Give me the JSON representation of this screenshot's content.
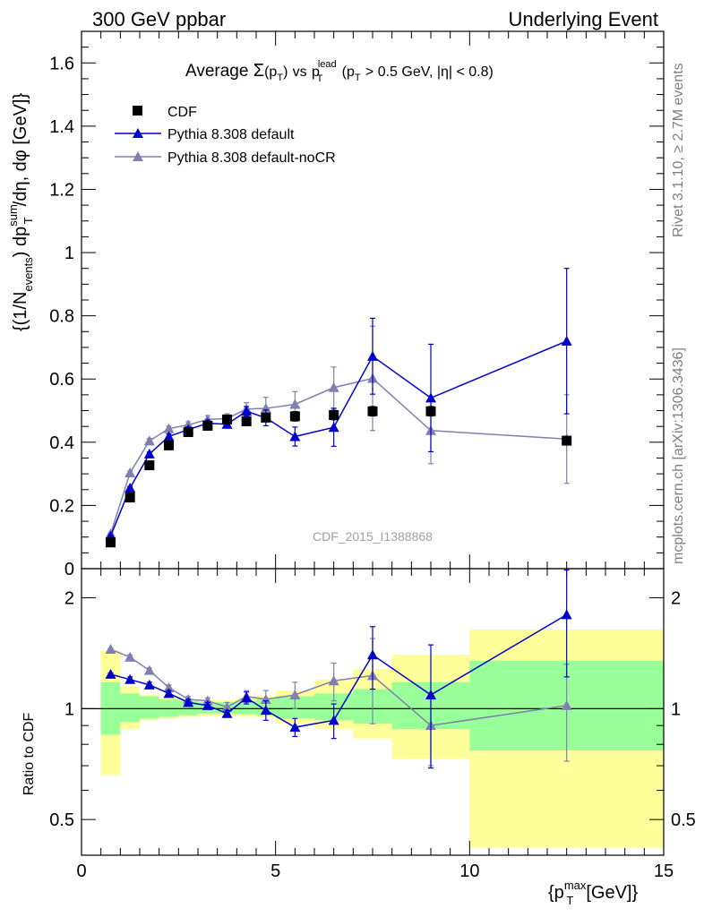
{
  "header": {
    "left": "300 GeV ppbar",
    "right": "Underlying Event"
  },
  "main_title": {
    "prefix": "Average",
    "sigma": "Σ",
    "pt_term": "(p",
    "pt_sub": "T",
    "close": ")",
    "vs": "vs",
    "p": "p",
    "lead_sup": "lead",
    "lead_sub": "T",
    "cut_open": "(p",
    "cut_sub": "T",
    "cut_rest": "> 0.5 GeV, |η| < 0.8)"
  },
  "side_labels": {
    "rivet": "Rivet 3.1.10, ≥ 2.7M events",
    "mcplots": "mcplots.cern.ch [arXiv:1306.3436]"
  },
  "watermark": "CDF_2015_I1388868",
  "colors": {
    "data": "#000000",
    "pythia_default": "#0000cc",
    "pythia_nocr": "#7f7fb2",
    "band_inner": "#99ff99",
    "band_outer": "#ffff99"
  },
  "chart_data": [
    {
      "type": "scatter",
      "panel": "main",
      "ylabel": "{(1/N_events) dp_T^sum/dη, dφ [GeV]}",
      "ylabel_parts": {
        "a": "{(1/N",
        "a_sub": "events",
        "b": ") dp",
        "b_sup": "sum",
        "b_sub": "T",
        "c": "/dη, dφ [GeV]}"
      },
      "xlim": [
        0,
        15
      ],
      "ylim": [
        0,
        1.7
      ],
      "yticks": [
        "0",
        "0.2",
        "0.4",
        "0.6",
        "0.8",
        "1",
        "1.2",
        "1.4",
        "1.6"
      ],
      "legend_position": "top-left",
      "series": [
        {
          "name": "CDF",
          "marker": "square",
          "x": [
            0.75,
            1.25,
            1.75,
            2.25,
            2.75,
            3.25,
            3.75,
            4.25,
            4.75,
            5.5,
            6.5,
            7.5,
            9.0,
            12.5
          ],
          "y": [
            0.083,
            0.225,
            0.327,
            0.39,
            0.432,
            0.452,
            0.472,
            0.466,
            0.478,
            0.482,
            0.486,
            0.498,
            0.498,
            0.405
          ],
          "err": [
            0.006,
            0.008,
            0.008,
            0.008,
            0.008,
            0.008,
            0.01,
            0.012,
            0.012,
            0.015,
            0.015,
            0.015,
            0.015,
            0.012
          ]
        },
        {
          "name": "Pythia 8.308 default",
          "marker": "triangle",
          "x": [
            0.75,
            1.25,
            1.75,
            2.25,
            2.75,
            3.25,
            3.75,
            4.25,
            4.75,
            5.5,
            6.5,
            7.5,
            9.0,
            12.5
          ],
          "y": [
            0.103,
            0.255,
            0.363,
            0.418,
            0.44,
            0.46,
            0.457,
            0.498,
            0.477,
            0.418,
            0.447,
            0.672,
            0.54,
            0.72
          ],
          "err": [
            0.004,
            0.005,
            0.006,
            0.008,
            0.008,
            0.01,
            0.012,
            0.015,
            0.025,
            0.03,
            0.06,
            0.12,
            0.17,
            0.23
          ]
        },
        {
          "name": "Pythia 8.308 default-noCR",
          "marker": "triangle",
          "x": [
            0.75,
            1.25,
            1.75,
            2.25,
            2.75,
            3.25,
            3.75,
            4.25,
            4.75,
            5.5,
            6.5,
            7.5,
            9.0,
            12.5
          ],
          "y": [
            0.11,
            0.303,
            0.404,
            0.443,
            0.455,
            0.472,
            0.475,
            0.505,
            0.507,
            0.52,
            0.573,
            0.602,
            0.437,
            0.41
          ],
          "err": [
            0.004,
            0.006,
            0.008,
            0.008,
            0.01,
            0.012,
            0.015,
            0.02,
            0.035,
            0.04,
            0.065,
            0.165,
            0.105,
            0.14
          ]
        }
      ]
    },
    {
      "type": "scatter",
      "panel": "ratio",
      "ylabel": "Ratio to CDF",
      "xlabel": "{p_T^max [GeV]}",
      "xlabel_parts": {
        "a": "{p",
        "sup": "max",
        "sub": "T",
        "b": "[GeV]}"
      },
      "xlim": [
        0,
        15
      ],
      "ylim": [
        0.4,
        2.4
      ],
      "log_y": true,
      "xticks": [
        "0",
        "5",
        "10",
        "15"
      ],
      "yticks": [
        "0.5",
        "1",
        "2"
      ],
      "bands": {
        "edges": [
          0.5,
          1.0,
          1.5,
          2.0,
          2.5,
          3.0,
          3.5,
          4.0,
          4.5,
          5.0,
          6.0,
          7.0,
          8.0,
          10.0,
          15.0
        ],
        "inner_lo": [
          0.85,
          0.92,
          0.94,
          0.95,
          0.96,
          0.97,
          0.97,
          0.965,
          0.96,
          0.94,
          0.93,
          0.91,
          0.88,
          0.77
        ],
        "inner_hi": [
          1.18,
          1.1,
          1.08,
          1.06,
          1.05,
          1.04,
          1.04,
          1.05,
          1.06,
          1.08,
          1.1,
          1.13,
          1.18,
          1.35
        ],
        "outer_lo": [
          0.66,
          0.88,
          0.93,
          0.94,
          0.95,
          0.955,
          0.955,
          0.95,
          0.95,
          0.91,
          0.88,
          0.83,
          0.73,
          0.42
        ],
        "outer_hi": [
          1.44,
          1.15,
          1.09,
          1.07,
          1.06,
          1.055,
          1.055,
          1.07,
          1.08,
          1.12,
          1.2,
          1.28,
          1.4,
          1.64
        ]
      },
      "series": [
        {
          "name": "Pythia 8.308 default",
          "x": [
            0.75,
            1.25,
            1.75,
            2.25,
            2.75,
            3.25,
            3.75,
            4.25,
            4.75,
            5.5,
            6.5,
            7.5,
            9.0,
            12.5
          ],
          "y": [
            1.24,
            1.2,
            1.16,
            1.1,
            1.04,
            1.02,
            0.97,
            1.07,
            0.99,
            0.89,
            0.93,
            1.4,
            1.09,
            1.8
          ],
          "err": [
            0.01,
            0.02,
            0.02,
            0.02,
            0.02,
            0.02,
            0.02,
            0.04,
            0.06,
            0.05,
            0.1,
            0.27,
            0.4,
            0.58
          ]
        },
        {
          "name": "Pythia 8.308 default-noCR",
          "x": [
            0.75,
            1.25,
            1.75,
            2.25,
            2.75,
            3.25,
            3.75,
            4.25,
            4.75,
            5.5,
            6.5,
            7.5,
            9.0,
            12.5
          ],
          "y": [
            1.45,
            1.38,
            1.27,
            1.14,
            1.06,
            1.05,
            1.01,
            1.08,
            1.06,
            1.09,
            1.19,
            1.23,
            0.9,
            1.02
          ],
          "err": [
            0.01,
            0.02,
            0.02,
            0.02,
            0.02,
            0.02,
            0.03,
            0.04,
            0.06,
            0.09,
            0.14,
            0.32,
            0.2,
            0.3
          ]
        }
      ]
    }
  ]
}
